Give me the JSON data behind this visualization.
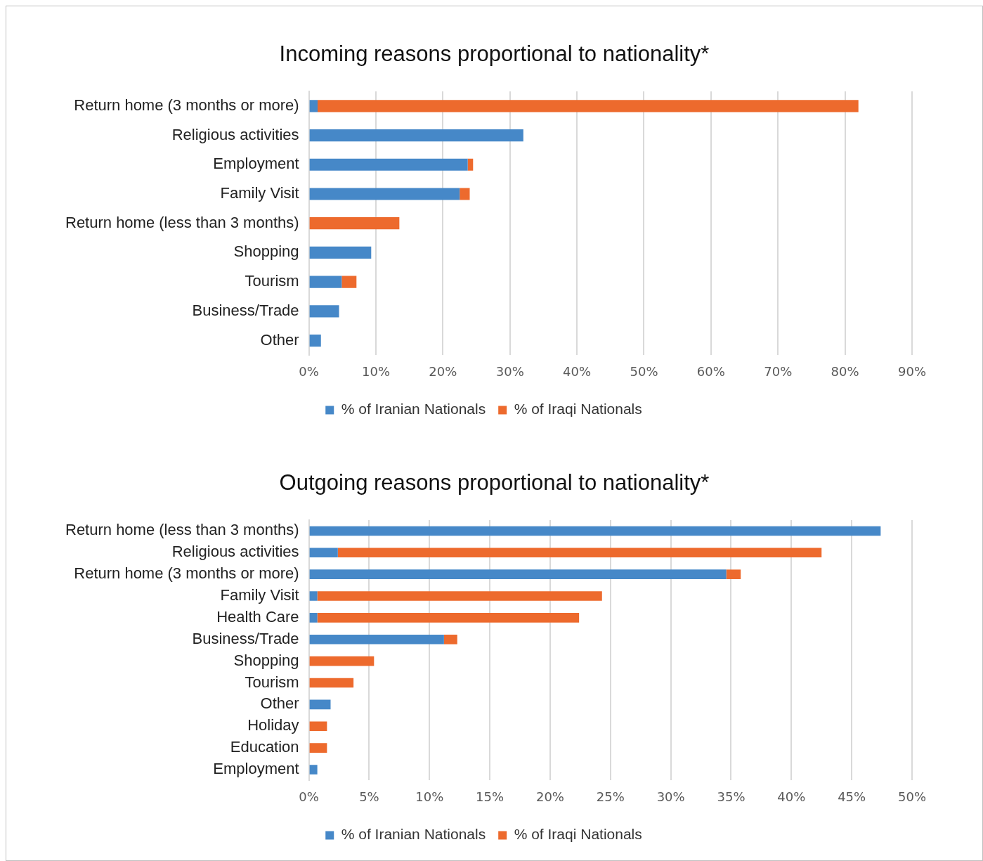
{
  "chart_data": [
    {
      "type": "bar",
      "orientation": "horizontal",
      "stacked": true,
      "title": "Incoming reasons proportional to nationality*",
      "categories": [
        "Return home (3 months or more)",
        "Religious activities",
        "Employment",
        "Family Visit",
        "Return home (less than 3 months)",
        "Shopping",
        "Tourism",
        "Business/Trade",
        "Other"
      ],
      "series": [
        {
          "name": "% of Iranian Nationals",
          "color": "#4688c8",
          "values": [
            1.3,
            32.0,
            23.7,
            22.5,
            null,
            9.3,
            4.9,
            4.5,
            1.8
          ]
        },
        {
          "name": "% of Iraqi Nationals",
          "color": "#ed6a2d",
          "values": [
            80.7,
            null,
            0.8,
            1.5,
            13.5,
            null,
            2.2,
            null,
            null
          ]
        }
      ],
      "xlim": [
        0,
        90
      ],
      "xticks": [
        {
          "value": 0,
          "label": "0%"
        },
        {
          "value": 10,
          "label": "10%"
        },
        {
          "value": 20,
          "label": "20%"
        },
        {
          "value": 30,
          "label": "30%"
        },
        {
          "value": 40,
          "label": "40%"
        },
        {
          "value": 50,
          "label": "50%"
        },
        {
          "value": 60,
          "label": "60%"
        },
        {
          "value": 70,
          "label": "70%"
        },
        {
          "value": 80,
          "label": "80%"
        },
        {
          "value": 90,
          "label": "90%"
        }
      ],
      "grid": "x",
      "legend": "bottom"
    },
    {
      "type": "bar",
      "orientation": "horizontal",
      "stacked": true,
      "title": "Outgoing reasons proportional to nationality*",
      "categories": [
        "Return home (less than 3 months)",
        "Religious activities",
        "Return home (3 months or more)",
        "Family Visit",
        "Health Care",
        "Business/Trade",
        "Shopping",
        "Tourism",
        "Other",
        "Holiday",
        "Education",
        "Employment"
      ],
      "series": [
        {
          "name": "% of Iranian Nationals",
          "color": "#4688c8",
          "values": [
            47.4,
            2.4,
            34.6,
            0.7,
            0.7,
            11.2,
            null,
            null,
            1.8,
            null,
            null,
            0.7
          ]
        },
        {
          "name": "% of Iraqi Nationals",
          "color": "#ed6a2d",
          "values": [
            null,
            40.1,
            1.2,
            23.6,
            21.7,
            1.1,
            5.4,
            3.7,
            null,
            1.5,
            1.5,
            null
          ]
        }
      ],
      "xlim": [
        0,
        50
      ],
      "xticks": [
        {
          "value": 0,
          "label": "0%"
        },
        {
          "value": 5,
          "label": "5%"
        },
        {
          "value": 10,
          "label": "10%"
        },
        {
          "value": 15,
          "label": "15%"
        },
        {
          "value": 20,
          "label": "20%"
        },
        {
          "value": 25,
          "label": "25%"
        },
        {
          "value": 30,
          "label": "30%"
        },
        {
          "value": 35,
          "label": "35%"
        },
        {
          "value": 40,
          "label": "40%"
        },
        {
          "value": 45,
          "label": "45%"
        },
        {
          "value": 50,
          "label": "50%"
        }
      ],
      "grid": "x",
      "legend": "bottom"
    }
  ]
}
